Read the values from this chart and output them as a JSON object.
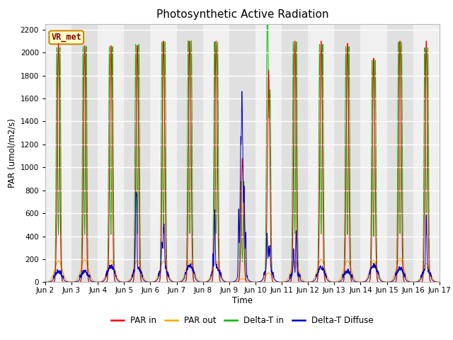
{
  "title": "Photosynthetic Active Radiation",
  "ylabel": "PAR (umol/m2/s)",
  "xlabel": "Time",
  "ylim": [
    0,
    2250
  ],
  "yticks": [
    0,
    200,
    400,
    600,
    800,
    1000,
    1200,
    1400,
    1600,
    1800,
    2000,
    2200
  ],
  "xtick_labels": [
    "Jun 2",
    "Jun 3",
    "Jun 4",
    "Jun 5",
    "Jun 6",
    "Jun 7",
    "Jun 8",
    "Jun 9",
    "Jun 10",
    "Jun 11",
    "Jun 12",
    "Jun 13",
    "Jun 14",
    "Jun 15",
    "Jun 16",
    "Jun 17"
  ],
  "legend_labels": [
    "PAR in",
    "PAR out",
    "Delta-T in",
    "Delta-T Diffuse"
  ],
  "legend_colors": [
    "#ff0000",
    "#ffa500",
    "#00bb00",
    "#0000cc"
  ],
  "watermark_text": "VR_met",
  "watermark_bg": "#ffffcc",
  "watermark_border": "#cc8800",
  "title_fontsize": 11,
  "n_days": 15,
  "pts_per_day": 144,
  "band_colors": [
    "#f0f0f0",
    "#e0e0e0"
  ]
}
